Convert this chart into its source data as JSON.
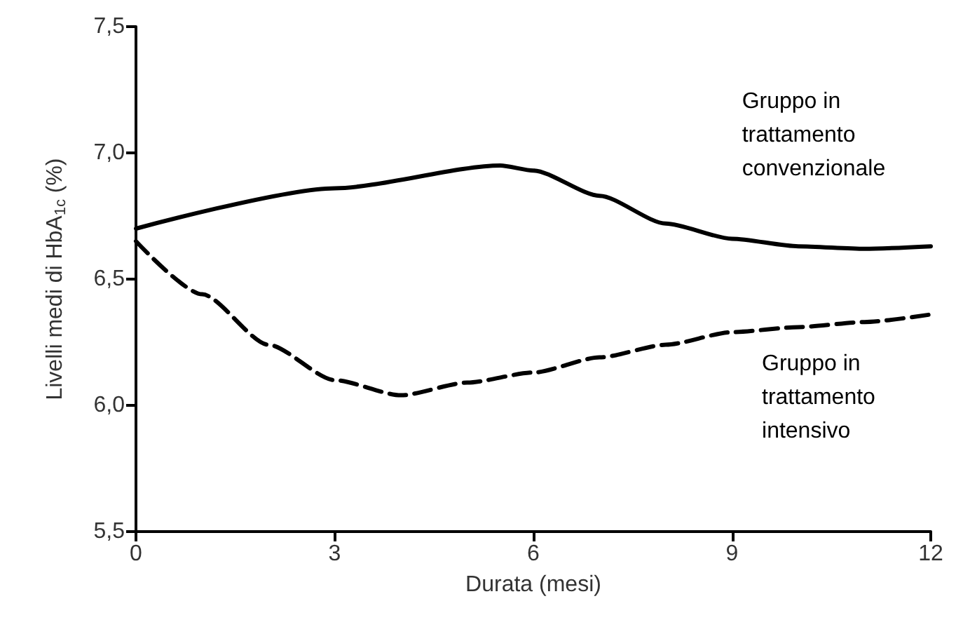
{
  "chart_data": {
    "type": "line",
    "xlabel": "Durata (mesi)",
    "ylabel": "Livelli medi di HbA$_{1c}$ (%)",
    "xlim": [
      0,
      12
    ],
    "xticks": [
      0,
      3,
      6,
      9,
      12
    ],
    "ylim": [
      5.5,
      7.5
    ],
    "yticks": [
      {
        "value": 5.5,
        "label": "5,5"
      },
      {
        "value": 6,
        "label": "6,0"
      },
      {
        "value": 6.5,
        "label": "6,5"
      },
      {
        "value": 7,
        "label": "7,0"
      },
      {
        "value": 7.5,
        "label": "7,5"
      }
    ],
    "grid": false,
    "legend": false,
    "marker": "none",
    "series": [
      {
        "name": "Gruppo in trattamento convenzionale",
        "color": "#000000",
        "line_style": "solid",
        "x": [
          0,
          3,
          5.5,
          6,
          7,
          8,
          9,
          10,
          11,
          12
        ],
        "values": [
          6.7,
          6.86,
          6.95,
          6.93,
          6.83,
          6.72,
          6.66,
          6.63,
          6.62,
          6.63
        ]
      },
      {
        "name": "Gruppo in trattamento intensivo",
        "color": "#000000",
        "line_style": "dashed",
        "x": [
          0,
          1,
          2,
          3,
          4,
          5,
          6,
          7,
          8,
          9,
          10,
          11,
          12
        ],
        "values": [
          6.65,
          6.44,
          6.24,
          6.1,
          6.04,
          6.09,
          6.13,
          6.19,
          6.24,
          6.29,
          6.31,
          6.33,
          6.36
        ]
      }
    ]
  }
}
